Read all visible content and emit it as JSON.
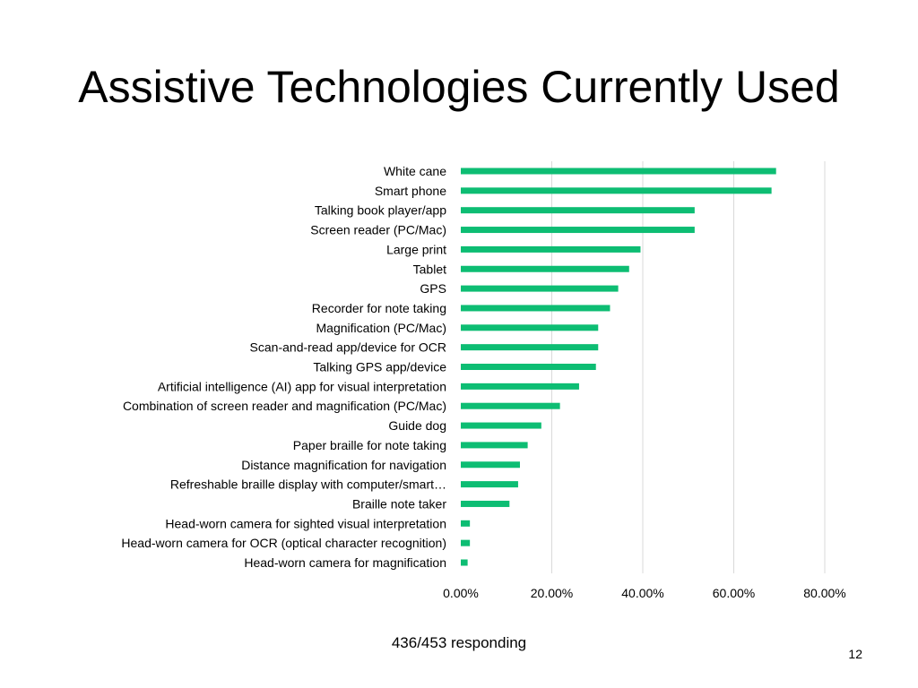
{
  "slide": {
    "title": "Assistive Technologies Currently Used",
    "footnote": "436/453 responding",
    "page_number": "12"
  },
  "chart_data": {
    "type": "bar",
    "orientation": "horizontal",
    "title": "",
    "xlabel": "",
    "ylabel": "",
    "categories": [
      "White cane",
      "Smart phone",
      "Talking book player/app",
      "Screen reader (PC/Mac)",
      "Large print",
      "Tablet",
      "GPS",
      "Recorder for note taking",
      "Magnification (PC/Mac)",
      "Scan-and-read app/device for OCR",
      "Talking GPS app/device",
      "Artificial intelligence (AI) app for visual interpretation",
      "Combination of screen reader and magnification (PC/Mac)",
      "Guide dog",
      "Paper braille for note taking",
      "Distance magnification for navigation",
      "Refreshable braille display with computer/smart…",
      "Braille note taker",
      "Head-worn camera for sighted visual interpretation",
      "Head-worn camera for OCR (optical character recognition)",
      "Head-worn camera for magnification"
    ],
    "values": [
      0.693,
      0.683,
      0.514,
      0.514,
      0.395,
      0.37,
      0.346,
      0.328,
      0.302,
      0.302,
      0.297,
      0.26,
      0.218,
      0.177,
      0.147,
      0.13,
      0.126,
      0.107,
      0.02,
      0.02,
      0.015
    ],
    "xlim": [
      0,
      0.8
    ],
    "x_ticks": [
      0,
      0.2,
      0.4,
      0.6,
      0.8
    ],
    "x_tick_labels": [
      "0.00%",
      "20.00%",
      "40.00%",
      "60.00%",
      "80.00%"
    ],
    "grid": true,
    "legend": "none",
    "bar_color": "#0dbd73",
    "grid_color": "#d9d9d9"
  }
}
